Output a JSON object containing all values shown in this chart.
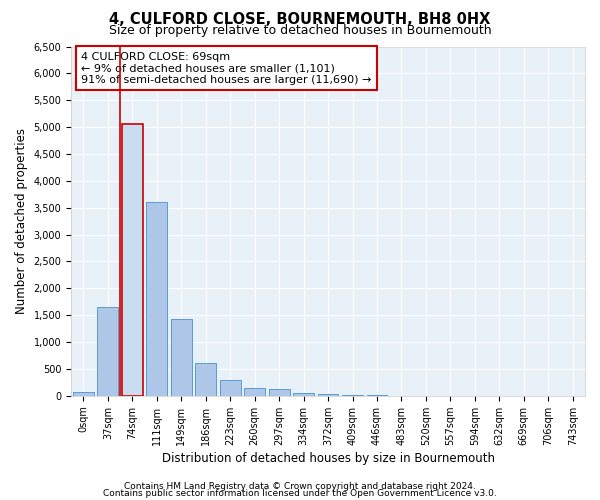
{
  "title": "4, CULFORD CLOSE, BOURNEMOUTH, BH8 0HX",
  "subtitle": "Size of property relative to detached houses in Bournemouth",
  "xlabel": "Distribution of detached houses by size in Bournemouth",
  "ylabel": "Number of detached properties",
  "footer_line1": "Contains HM Land Registry data © Crown copyright and database right 2024.",
  "footer_line2": "Contains public sector information licensed under the Open Government Licence v3.0.",
  "annotation_title": "4 CULFORD CLOSE: 69sqm",
  "annotation_line1": "← 9% of detached houses are smaller (1,101)",
  "annotation_line2": "91% of semi-detached houses are larger (11,690) →",
  "categories": [
    "0sqm",
    "37sqm",
    "74sqm",
    "111sqm",
    "149sqm",
    "186sqm",
    "223sqm",
    "260sqm",
    "297sqm",
    "334sqm",
    "372sqm",
    "409sqm",
    "446sqm",
    "483sqm",
    "520sqm",
    "557sqm",
    "594sqm",
    "632sqm",
    "669sqm",
    "706sqm",
    "743sqm"
  ],
  "values": [
    65,
    1650,
    5050,
    3600,
    1430,
    610,
    300,
    155,
    120,
    60,
    35,
    20,
    8,
    4,
    3,
    2,
    2,
    1,
    1,
    1,
    0
  ],
  "bar_color": "#aec6e8",
  "bar_edge_color": "#5a9bd5",
  "highlight_bar_index": 2,
  "highlight_color": "#c8ddf0",
  "highlight_edge_color": "#cc0000",
  "red_line_x": 1.5,
  "annotation_box_color": "#ffffff",
  "annotation_box_edge_color": "#cc0000",
  "ylim": [
    0,
    6500
  ],
  "yticks": [
    0,
    500,
    1000,
    1500,
    2000,
    2500,
    3000,
    3500,
    4000,
    4500,
    5000,
    5500,
    6000,
    6500
  ],
  "background_color": "#ffffff",
  "plot_bg_color": "#e8f0f8",
  "grid_color": "#ffffff",
  "title_fontsize": 10.5,
  "subtitle_fontsize": 9,
  "axis_label_fontsize": 8.5,
  "tick_fontsize": 7,
  "annotation_fontsize": 8,
  "footer_fontsize": 6.5
}
